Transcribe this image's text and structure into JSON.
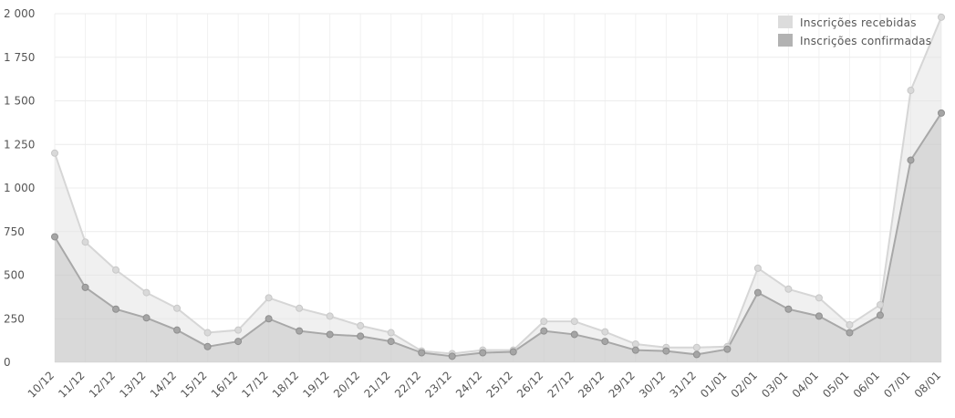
{
  "chart_data": {
    "type": "area",
    "categories": [
      "10/12",
      "11/12",
      "12/12",
      "13/12",
      "14/12",
      "15/12",
      "16/12",
      "17/12",
      "18/12",
      "19/12",
      "20/12",
      "21/12",
      "22/12",
      "23/12",
      "24/12",
      "25/12",
      "26/12",
      "27/12",
      "28/12",
      "29/12",
      "30/12",
      "31/12",
      "01/01",
      "02/01",
      "03/01",
      "04/01",
      "05/01",
      "06/01",
      "07/01",
      "08/01"
    ],
    "series": [
      {
        "name": "Inscrições recebidas",
        "color": "#e4e4e4",
        "values": [
          1200,
          690,
          530,
          400,
          310,
          170,
          185,
          370,
          310,
          265,
          210,
          170,
          65,
          50,
          70,
          70,
          235,
          235,
          175,
          105,
          85,
          85,
          90,
          540,
          420,
          370,
          215,
          330,
          1560,
          1980
        ]
      },
      {
        "name": "Inscrições confirmadas",
        "color": "#bdbdbd",
        "values": [
          720,
          430,
          305,
          255,
          185,
          90,
          120,
          250,
          180,
          160,
          150,
          120,
          55,
          35,
          55,
          60,
          180,
          160,
          120,
          70,
          65,
          45,
          75,
          400,
          305,
          265,
          170,
          270,
          1160,
          1430
        ]
      }
    ],
    "yticks": [
      "0",
      "250",
      "500",
      "750",
      "1 000",
      "1 250",
      "1 500",
      "1 750",
      "2 000"
    ],
    "ylim": [
      0,
      2000
    ],
    "grid": true,
    "legend_position": "top-right"
  }
}
